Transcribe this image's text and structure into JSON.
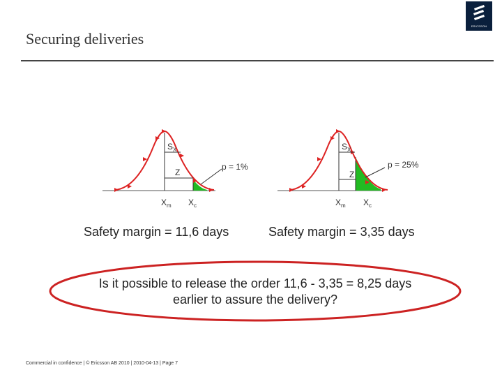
{
  "header": {
    "title": "Securing deliveries",
    "logo_text": "ERICSSON"
  },
  "left_chart": {
    "sx_label": "S",
    "sx_sub": "X",
    "z_label": "Z",
    "p_label": "p = 1%",
    "xm_label": "X",
    "xm_sub": "m",
    "xc_label": "X",
    "xc_sub": "c",
    "safety_margin": "Safety margin = 11,6 days"
  },
  "right_chart": {
    "sx_label": "S",
    "sx_sub": "X",
    "z_label": "Z",
    "p_label": "p = 25%",
    "xm_label": "X",
    "xm_sub": "m",
    "xc_label": "X",
    "xc_sub": "c",
    "safety_margin": "Safety margin = 3,35 days"
  },
  "question": {
    "line1": "Is it possible to release the order 11,6 - 3,35 = 8,25 days",
    "line2": "earlier to assure the delivery?"
  },
  "footer": {
    "text": "Commercial in confidence  |  © Ericsson AB 2010  |  2010-04-13  |  Page  7"
  },
  "colors": {
    "curve": "#dd2222",
    "tail_fill": "#22bb22",
    "ellipse": "#cc2222",
    "logo_bg": "#0a1f3c"
  }
}
